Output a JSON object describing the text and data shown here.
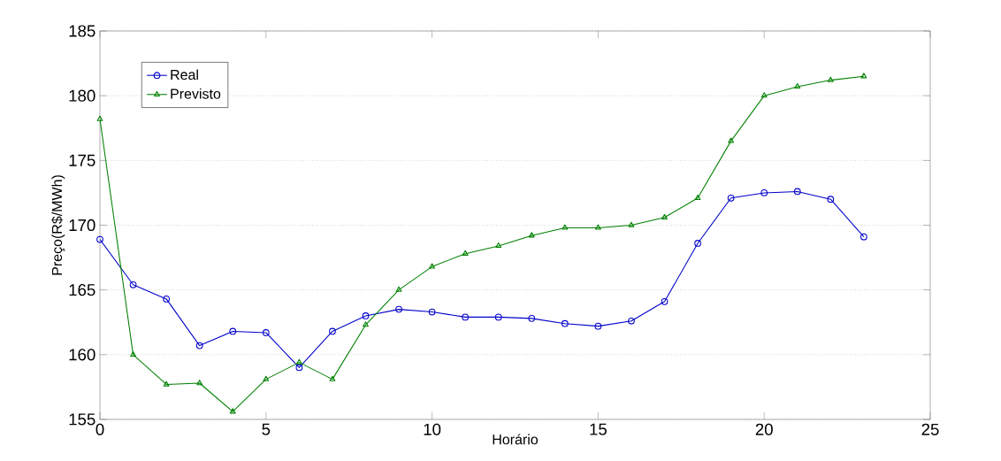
{
  "chart_data": {
    "type": "line",
    "xlabel": "Horário",
    "ylabel": "Preço(R$/MWh)",
    "x": [
      0,
      1,
      2,
      3,
      4,
      5,
      6,
      7,
      8,
      9,
      10,
      11,
      12,
      13,
      14,
      15,
      16,
      17,
      18,
      19,
      20,
      21,
      22,
      23
    ],
    "series": [
      {
        "name": "Real",
        "color": "#0000cc",
        "marker": "circle",
        "values": [
          168.9,
          165.4,
          164.3,
          160.7,
          161.8,
          161.7,
          159.0,
          161.8,
          163.0,
          163.5,
          163.3,
          162.9,
          162.9,
          162.8,
          162.4,
          162.2,
          162.6,
          164.1,
          168.6,
          172.1,
          172.5,
          172.6,
          172.0,
          169.1
        ]
      },
      {
        "name": "Previsto",
        "color": "#008000",
        "marker": "triangle",
        "values": [
          178.2,
          160.0,
          157.7,
          157.8,
          155.6,
          158.1,
          159.4,
          158.1,
          162.3,
          165.0,
          166.8,
          167.8,
          168.4,
          169.2,
          169.8,
          169.8,
          170.0,
          170.6,
          172.1,
          176.5,
          180.0,
          180.7,
          181.2,
          181.5
        ]
      }
    ],
    "xlim": [
      0,
      25
    ],
    "xticks": [
      0,
      5,
      10,
      15,
      20,
      25
    ],
    "ylim": [
      155,
      185
    ],
    "yticks": [
      155,
      160,
      165,
      170,
      175,
      180,
      185
    ],
    "grid": "y",
    "legend": "top left",
    "line_style": "solid"
  }
}
